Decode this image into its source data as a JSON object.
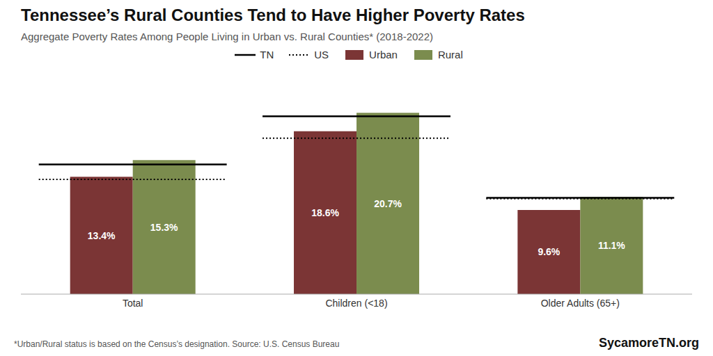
{
  "chart_data": {
    "type": "bar",
    "title": "Tennessee’s Rural Counties Tend to Have Higher Poverty Rates",
    "subtitle": "Aggregate Poverty Rates Among People Living in Urban vs. Rural Counties* (2018-2022)",
    "categories": [
      "Total",
      "Children (<18)",
      "Older Adults (65+)"
    ],
    "series": [
      {
        "name": "TN",
        "type": "line",
        "line_style": "solid",
        "color": "#000000",
        "values": [
          14.8,
          20.3,
          11.0
        ]
      },
      {
        "name": "US",
        "type": "line",
        "line_style": "dotted",
        "color": "#000000",
        "values": [
          13.1,
          17.8,
          10.9
        ]
      },
      {
        "name": "Urban",
        "type": "bar",
        "color": "#7B3535",
        "values": [
          13.4,
          18.6,
          9.6
        ],
        "value_labels": [
          "13.4%",
          "18.6%",
          "9.6%"
        ]
      },
      {
        "name": "Rural",
        "type": "bar",
        "color": "#7B8C4E",
        "values": [
          15.3,
          20.7,
          11.1
        ],
        "value_labels": [
          "15.3%",
          "20.7%",
          "11.1%"
        ]
      }
    ],
    "ylim": [
      0,
      25
    ],
    "tick_labels": "x",
    "data_labels": true,
    "grid": false,
    "legend": "top",
    "annotations": [
      "*Urban/Rural status is based on the Census’s designation. Source: U.S. Census Bureau",
      "SycamoreTN.org"
    ]
  }
}
